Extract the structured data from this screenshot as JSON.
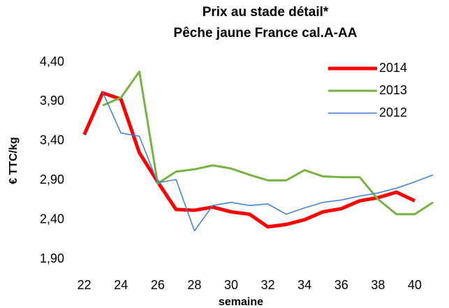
{
  "chart_data": {
    "type": "line",
    "title": "Prix au stade détail*",
    "subtitle": "Pêche jaune France cal.A-AA",
    "x_label": "semaine",
    "y_label": "€ TTC/kg",
    "x": [
      22,
      23,
      24,
      25,
      26,
      27,
      28,
      29,
      30,
      31,
      32,
      33,
      34,
      35,
      36,
      37,
      38,
      39,
      40,
      41
    ],
    "series": [
      {
        "name": "2014",
        "color": "#ff0000",
        "width": 5,
        "values": [
          3.48,
          4.01,
          3.93,
          3.25,
          2.88,
          2.53,
          2.52,
          2.56,
          2.5,
          2.47,
          2.31,
          2.34,
          2.4,
          2.5,
          2.54,
          2.64,
          2.68,
          2.75,
          2.64,
          null
        ]
      },
      {
        "name": "2013",
        "color": "#77b340",
        "width": 3,
        "values": [
          null,
          3.85,
          3.95,
          4.28,
          2.86,
          3.01,
          3.04,
          3.09,
          3.05,
          2.97,
          2.9,
          2.9,
          3.03,
          2.95,
          2.94,
          2.94,
          2.66,
          2.47,
          2.47,
          2.62
        ]
      },
      {
        "name": "2012",
        "color": "#3b7ddd",
        "width": 1.5,
        "values": [
          null,
          4.02,
          3.5,
          3.46,
          2.87,
          2.91,
          2.26,
          2.58,
          2.62,
          2.58,
          2.6,
          2.47,
          2.55,
          2.62,
          2.65,
          2.7,
          2.74,
          2.8,
          2.88,
          2.97
        ]
      }
    ],
    "xlim": [
      21.1,
      41.6
    ],
    "xticks": [
      22,
      24,
      26,
      28,
      30,
      32,
      34,
      36,
      38,
      40
    ],
    "ylim": [
      1.9,
      4.4
    ],
    "yticks": [
      {
        "value": 1.9,
        "label": "1,90"
      },
      {
        "value": 2.4,
        "label": "2,40"
      },
      {
        "value": 2.9,
        "label": "2,90"
      },
      {
        "value": 3.4,
        "label": "3,40"
      },
      {
        "value": 3.9,
        "label": "3,90"
      },
      {
        "value": 4.4,
        "label": "4,40"
      }
    ],
    "legend": "top-right"
  }
}
